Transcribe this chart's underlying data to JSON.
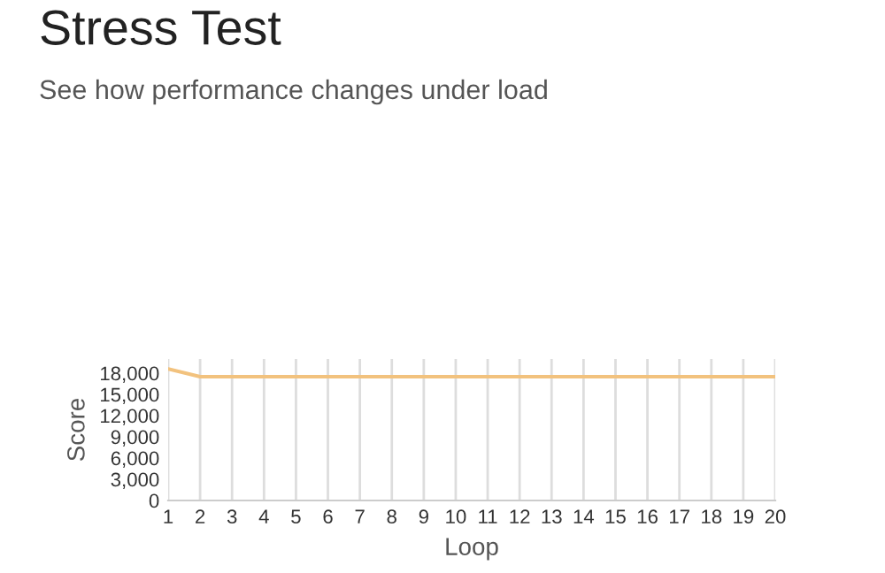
{
  "chart_data": {
    "type": "line",
    "title": "Stress Test",
    "subtitle": "See how performance changes under load",
    "xlabel": "Loop",
    "ylabel": "Score",
    "x": [
      1,
      2,
      3,
      4,
      5,
      6,
      7,
      8,
      9,
      10,
      11,
      12,
      13,
      14,
      15,
      16,
      17,
      18,
      19,
      20
    ],
    "series": [
      {
        "color": "#f2c27e",
        "values": [
          18600,
          17500,
          17500,
          17500,
          17500,
          17500,
          17500,
          17500,
          17500,
          17500,
          17500,
          17500,
          17500,
          17500,
          17500,
          17500,
          17500,
          17500,
          17500,
          17500
        ]
      }
    ],
    "xlim": [
      1,
      20
    ],
    "xticks": [
      1,
      2,
      3,
      4,
      5,
      6,
      7,
      8,
      9,
      10,
      11,
      12,
      13,
      14,
      15,
      16,
      17,
      18,
      19,
      20
    ],
    "ylim": [
      0,
      20000
    ],
    "yticks": [
      0,
      {
        "value": 3000,
        "label": "3,000"
      },
      {
        "value": 6000,
        "label": "6,000"
      },
      {
        "value": 9000,
        "label": "9,000"
      },
      {
        "value": 12000,
        "label": "12,000"
      },
      {
        "value": 15000,
        "label": "15,000"
      },
      {
        "value": 18000,
        "label": "18,000"
      }
    ],
    "grid": "x"
  }
}
